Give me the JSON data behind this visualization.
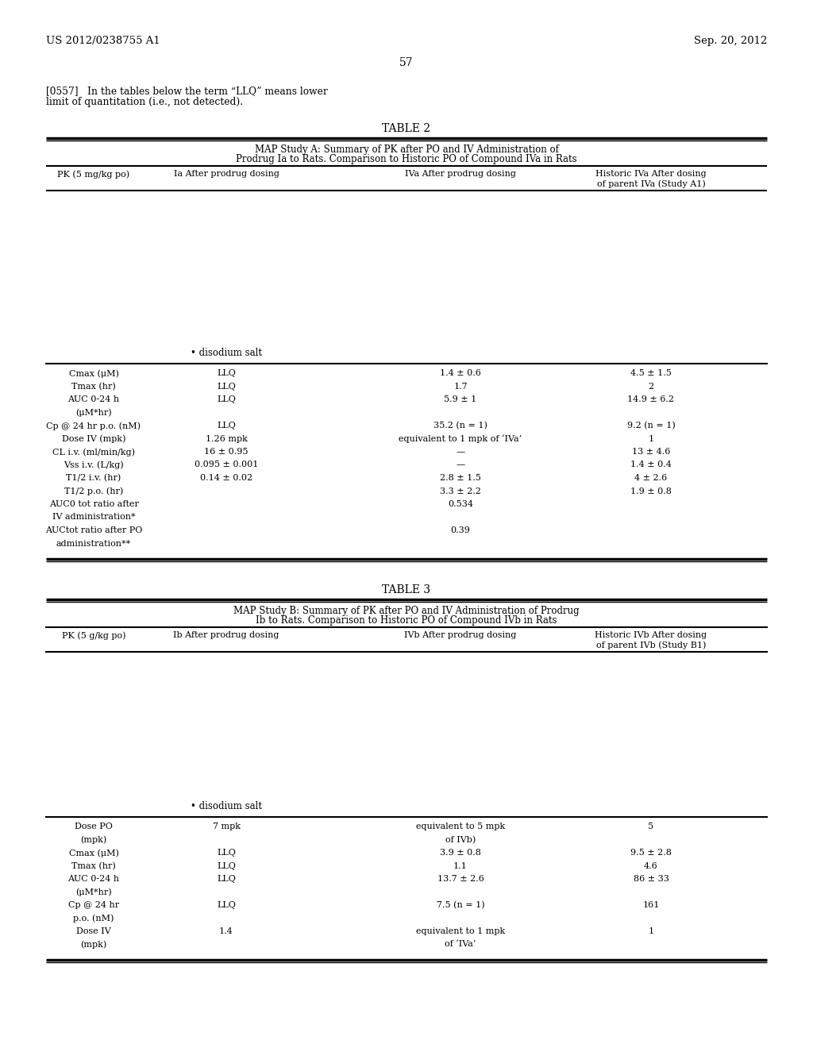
{
  "background_color": "#ffffff",
  "page_number": "57",
  "left_header": "US 2012/0238755 A1",
  "right_header": "Sep. 20, 2012",
  "intro_text_1": "[0557]   In the tables below the term “LLQ” means lower",
  "intro_text_2": "limit of quantitation (i.e., not detected).",
  "table2_title": "TABLE 2",
  "table2_subtitle1": "MAP Study A: Summary of PK after PO and IV Administration of",
  "table2_subtitle2": "Prodrug Ia to Rats. Comparison to Historic PO of Compound IVa in Rats",
  "table2_col1": "PK (5 mg/kg po)",
  "table2_col2": "Ia After prodrug dosing",
  "table2_col3": "IVa After prodrug dosing",
  "table2_col4a": "Historic IVa After dosing",
  "table2_col4b": "of parent IVa (Study A1)",
  "table2_rows": [
    [
      "Cmax (μM)",
      "LLQ",
      "1.4 ± 0.6",
      "4.5 ± 1.5"
    ],
    [
      "Tmax (hr)",
      "LLQ",
      "1.7",
      "2"
    ],
    [
      "AUC 0-24 h",
      "LLQ",
      "5.9 ± 1",
      "14.9 ± 6.2"
    ],
    [
      "(μM*hr)",
      "",
      "",
      ""
    ],
    [
      "Cp @ 24 hr p.o. (nM)",
      "LLQ",
      "35.2 (n = 1)",
      "9.2 (n = 1)"
    ],
    [
      "Dose IV (mpk)",
      "1.26 mpk",
      "equivalent to 1 mpk of ‘IVa’",
      "1"
    ],
    [
      "CL i.v. (ml/min/kg)",
      "16 ± 0.95",
      "—",
      "13 ± 4.6"
    ],
    [
      "Vss i.v. (L/kg)",
      "0.095 ± 0.001",
      "—",
      "1.4 ± 0.4"
    ],
    [
      "T1/2 i.v. (hr)",
      "0.14 ± 0.02",
      "2.8 ± 1.5",
      "4 ± 2.6"
    ],
    [
      "T1/2 p.o. (hr)",
      "",
      "3.3 ± 2.2",
      "1.9 ± 0.8"
    ],
    [
      "AUC0 tot ratio after",
      "",
      "0.534",
      ""
    ],
    [
      "IV administration*",
      "",
      "",
      ""
    ],
    [
      "AUCtot ratio after PO",
      "",
      "0.39",
      ""
    ],
    [
      "administration**",
      "",
      "",
      ""
    ]
  ],
  "table2_disodium": "• disodium salt",
  "table3_title": "TABLE 3",
  "table3_subtitle1": "MAP Study B: Summary of PK after PO and IV Administration of Prodrug",
  "table3_subtitle2": "Ib to Rats. Comparison to Historic PO of Compound IVb in Rats",
  "table3_col1": "PK (5 g/kg po)",
  "table3_col2": "Ib After prodrug dosing",
  "table3_col3": "IVb After prodrug dosing",
  "table3_col4a": "Historic IVb After dosing",
  "table3_col4b": "of parent IVb (Study B1)",
  "table3_rows": [
    [
      "Dose PO",
      "7 mpk",
      "equivalent to 5 mpk",
      "5"
    ],
    [
      "(mpk)",
      "",
      "of IVb)",
      ""
    ],
    [
      "Cmax (μM)",
      "LLQ",
      "3.9 ± 0.8",
      "9.5 ± 2.8"
    ],
    [
      "Tmax (hr)",
      "LLQ",
      "1.1",
      "4.6"
    ],
    [
      "AUC 0-24 h",
      "LLQ",
      "13.7 ± 2.6",
      "86 ± 33"
    ],
    [
      "(μM*hr)",
      "",
      "",
      ""
    ],
    [
      "Cp @ 24 hr",
      "LLQ",
      "7.5 (n = 1)",
      "161"
    ],
    [
      "p.o. (nM)",
      "",
      "",
      ""
    ],
    [
      "Dose IV",
      "1.4",
      "equivalent to 1 mpk",
      "1"
    ],
    [
      "(mpk)",
      "",
      "of ‘IVa’",
      ""
    ]
  ],
  "table3_disodium": "• disodium salt"
}
